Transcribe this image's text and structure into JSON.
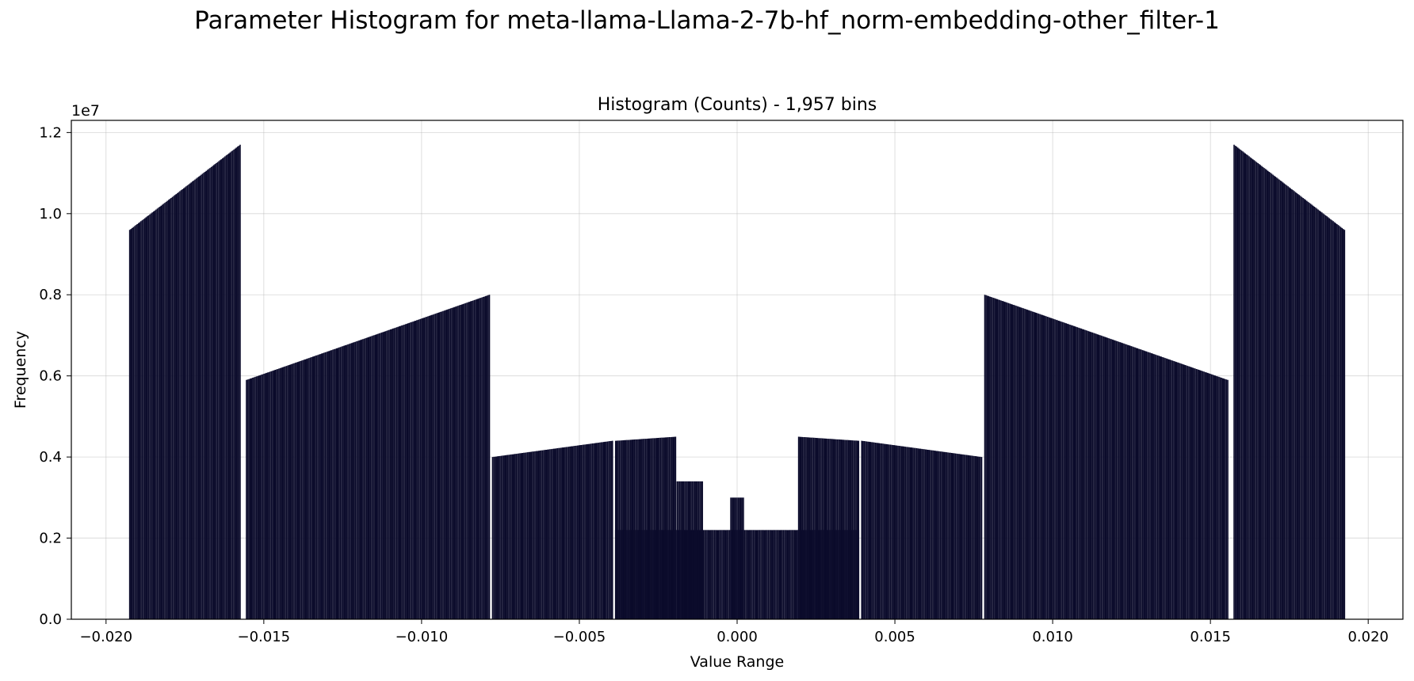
{
  "figure": {
    "suptitle": "Parameter Histogram for meta-llama-Llama-2-7b-hf_norm-embedding-other_filter-1"
  },
  "chart_data": {
    "type": "bar",
    "title": "Histogram (Counts) - 1,957 bins",
    "xlabel": "Value Range",
    "ylabel": "Frequency",
    "y_scale_label": "1e7",
    "xlim": [
      -0.0211,
      0.0211
    ],
    "ylim": [
      0,
      12300000
    ],
    "x_ticks": [
      -0.02,
      -0.015,
      -0.01,
      -0.005,
      0.0,
      0.005,
      0.01,
      0.015,
      0.02
    ],
    "x_tick_labels": [
      "−0.020",
      "−0.015",
      "−0.010",
      "−0.005",
      "0.000",
      "0.005",
      "0.010",
      "0.015",
      "0.020"
    ],
    "y_ticks": [
      0,
      2000000,
      4000000,
      6000000,
      8000000,
      10000000,
      12000000
    ],
    "y_tick_labels": [
      "0.0",
      "0.2",
      "0.4",
      "0.6",
      "0.8",
      "1.0",
      "1.2"
    ],
    "grid": true,
    "bar_color": "#0b0b2b",
    "bin_count": 1957,
    "segments": [
      {
        "range": [
          -0.01925,
          -0.01575
        ],
        "start": 9600000,
        "end": 11700000
      },
      {
        "range": [
          -0.01555,
          -0.00785
        ],
        "start": 5900000,
        "end": 8000000
      },
      {
        "range": [
          -0.00775,
          -0.00395
        ],
        "start": 4000000,
        "end": 4400000
      },
      {
        "range": [
          -0.00385,
          -0.00195
        ],
        "start": 4400000,
        "end": 4500000
      },
      {
        "range": [
          -0.00385,
          0.00385
        ],
        "start": 2200000,
        "end": 2200000
      },
      {
        "range": [
          -0.0019,
          -0.0011
        ],
        "start": 3400000,
        "end": 3400000
      },
      {
        "range": [
          -0.0002,
          0.0002
        ],
        "start": 3000000,
        "end": 3000000
      },
      {
        "range": [
          0.00195,
          0.00385
        ],
        "start": 4500000,
        "end": 4400000
      },
      {
        "range": [
          0.00395,
          0.00775
        ],
        "start": 4400000,
        "end": 4000000
      },
      {
        "range": [
          0.00785,
          0.01555
        ],
        "start": 8000000,
        "end": 5900000
      },
      {
        "range": [
          0.01575,
          0.01925
        ],
        "start": 11700000,
        "end": 9600000
      }
    ]
  }
}
